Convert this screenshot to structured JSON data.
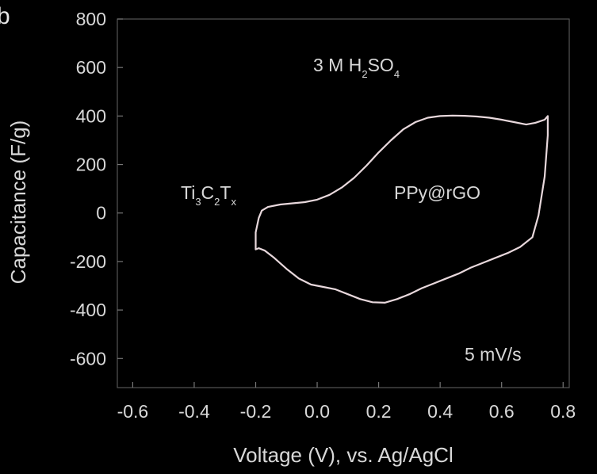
{
  "panel_label": "b",
  "chart_data": {
    "type": "line",
    "xlabel": "Voltage (V), vs. Ag/AgCl",
    "ylabel": "Capacitance (F/g)",
    "xlim": [
      -0.65,
      0.82
    ],
    "ylim": [
      -720,
      800
    ],
    "x_ticks": [
      -0.6,
      -0.4,
      -0.2,
      0.0,
      0.2,
      0.4,
      0.6,
      0.8
    ],
    "x_tick_labels": [
      "-0.6",
      "-0.4",
      "-0.2",
      "0.0",
      "0.2",
      "0.4",
      "0.6",
      "0.8"
    ],
    "y_ticks": [
      800,
      600,
      400,
      200,
      0,
      -200,
      -400,
      -600
    ],
    "y_tick_labels": [
      "800",
      "600",
      "400",
      "200",
      "0",
      "-200",
      "-400",
      "-600"
    ],
    "annotations": {
      "electrolyte": {
        "base1": "3 M H",
        "sub1": "2",
        "base2": "SO",
        "sub2": "4"
      },
      "negative_electrode": {
        "b1": "Ti",
        "s1": "3",
        "b2": "C",
        "s2": "2",
        "b3": "T",
        "s3": "x"
      },
      "positive_electrode": "PPy@rGO",
      "scan_rate": "5 mV/s"
    },
    "series": [
      {
        "color": "#e8d8dc",
        "x": [
          -0.2,
          -0.2,
          -0.19,
          -0.18,
          -0.16,
          -0.12,
          -0.08,
          -0.04,
          0.0,
          0.04,
          0.08,
          0.12,
          0.16,
          0.2,
          0.24,
          0.28,
          0.32,
          0.36,
          0.4,
          0.44,
          0.48,
          0.52,
          0.56,
          0.6,
          0.64,
          0.68,
          0.71,
          0.74,
          0.75,
          0.75,
          0.74,
          0.72,
          0.7,
          0.66,
          0.62,
          0.58,
          0.54,
          0.5,
          0.46,
          0.42,
          0.38,
          0.34,
          0.3,
          0.26,
          0.22,
          0.18,
          0.14,
          0.1,
          0.06,
          0.02,
          -0.02,
          -0.06,
          -0.1,
          -0.14,
          -0.17,
          -0.19,
          -0.2
        ],
        "y": [
          -150,
          -80,
          -20,
          10,
          25,
          35,
          40,
          45,
          55,
          75,
          105,
          145,
          195,
          250,
          300,
          345,
          375,
          393,
          400,
          402,
          401,
          398,
          393,
          385,
          375,
          365,
          372,
          385,
          400,
          320,
          150,
          -10,
          -100,
          -140,
          -165,
          -185,
          -205,
          -225,
          -250,
          -270,
          -290,
          -310,
          -335,
          -355,
          -370,
          -368,
          -355,
          -335,
          -315,
          -305,
          -295,
          -270,
          -230,
          -185,
          -155,
          -145,
          -150
        ]
      }
    ]
  }
}
